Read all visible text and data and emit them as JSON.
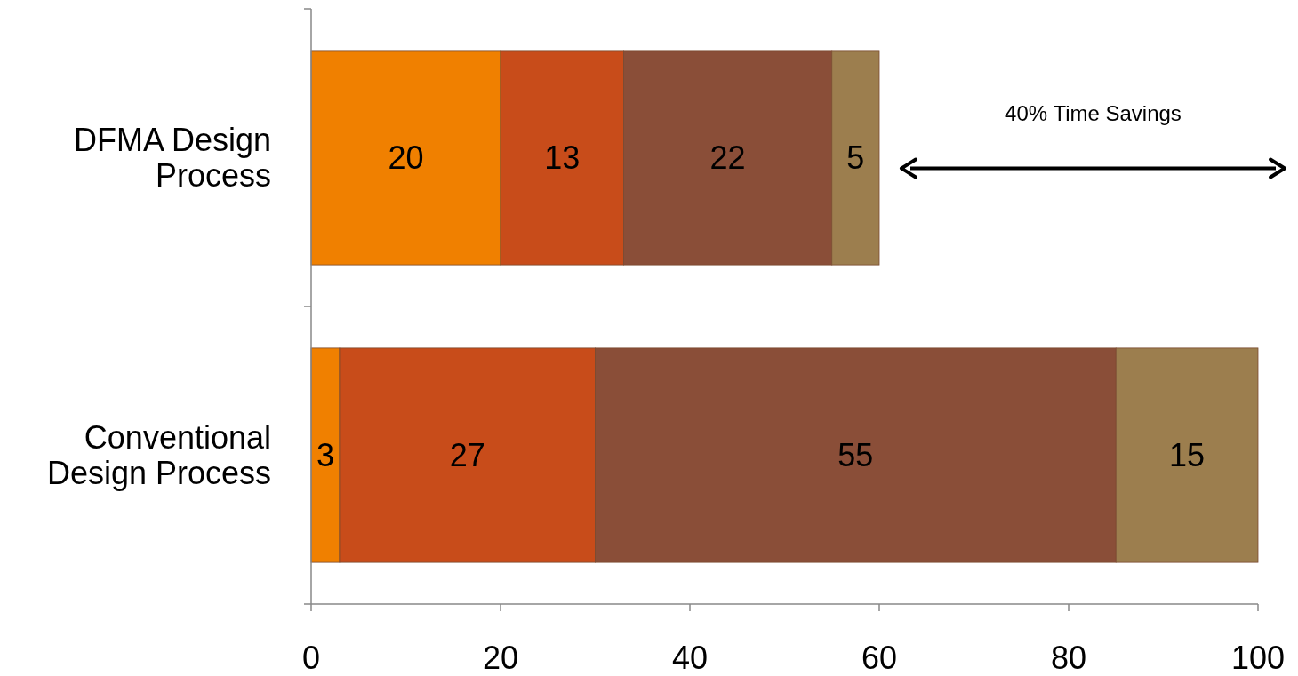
{
  "chart_data": {
    "type": "bar",
    "orientation": "horizontal",
    "stacked": true,
    "categories": [
      "DFMA Design Process",
      "Conventional Design Process"
    ],
    "series": [
      {
        "color": "#f08000",
        "values": [
          20,
          3
        ]
      },
      {
        "color": "#c84c1a",
        "values": [
          13,
          27
        ]
      },
      {
        "color": "#8a4e38",
        "values": [
          22,
          55
        ]
      },
      {
        "color": "#9c7e4e",
        "values": [
          5,
          15
        ]
      }
    ],
    "xlim": [
      0,
      100
    ],
    "xticks": [
      0,
      20,
      40,
      60,
      80,
      100
    ],
    "data_labels": true,
    "grid": false,
    "annotations": [
      "40% Time Savings"
    ]
  }
}
